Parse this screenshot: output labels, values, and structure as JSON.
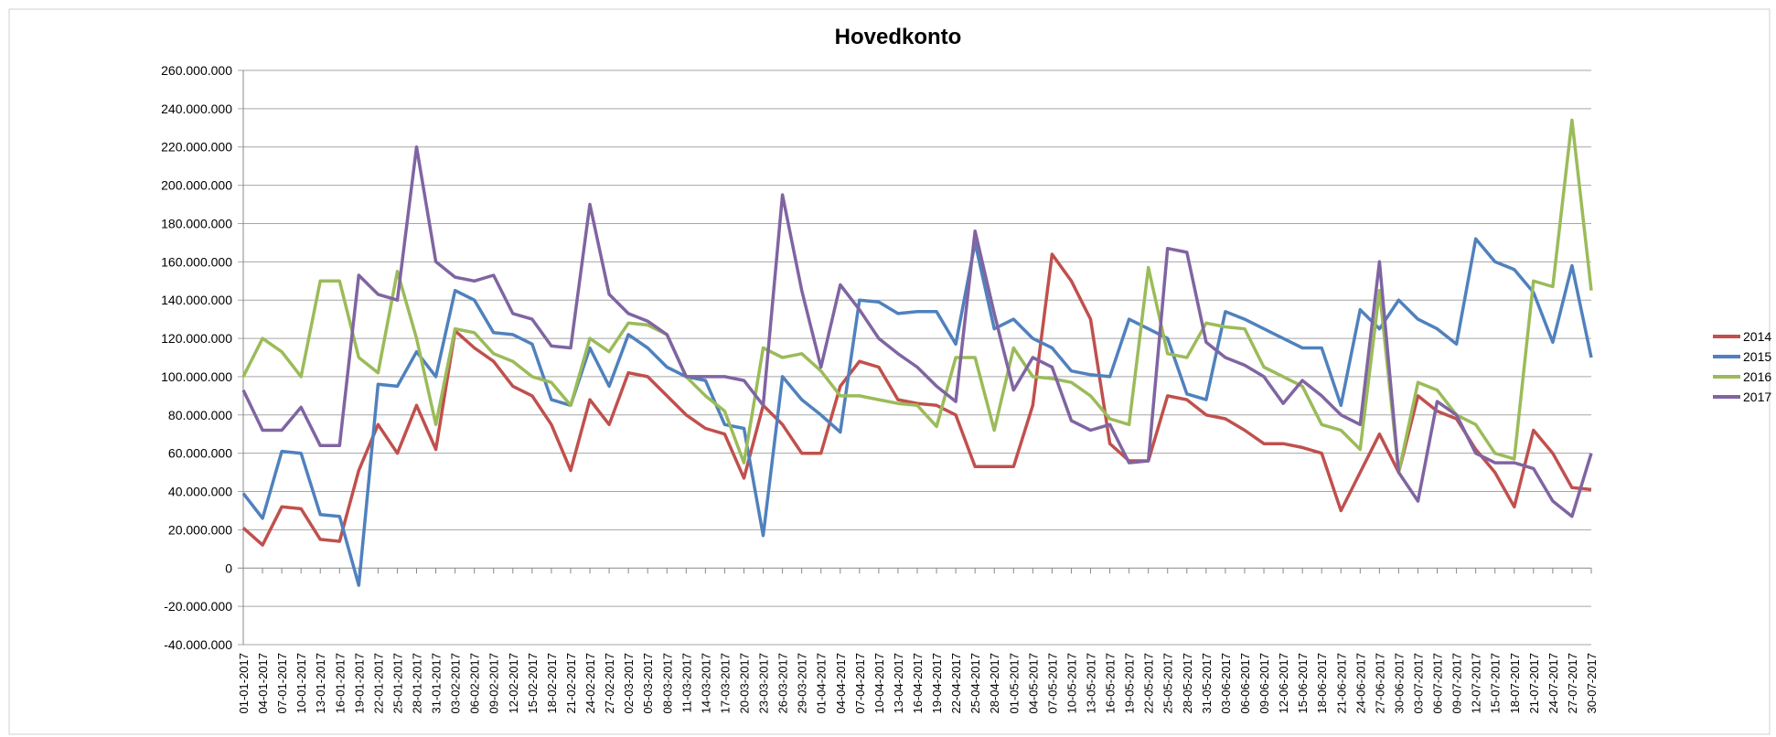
{
  "chart_data": {
    "type": "line",
    "title": "Hovedkonto",
    "categories": [
      "01-01-2017",
      "04-01-2017",
      "07-01-2017",
      "10-01-2017",
      "13-01-2017",
      "16-01-2017",
      "19-01-2017",
      "22-01-2017",
      "25-01-2017",
      "28-01-2017",
      "31-01-2017",
      "03-02-2017",
      "06-02-2017",
      "09-02-2017",
      "12-02-2017",
      "15-02-2017",
      "18-02-2017",
      "21-02-2017",
      "24-02-2017",
      "27-02-2017",
      "02-03-2017",
      "05-03-2017",
      "08-03-2017",
      "11-03-2017",
      "14-03-2017",
      "17-03-2017",
      "20-03-2017",
      "23-03-2017",
      "26-03-2017",
      "29-03-2017",
      "01-04-2017",
      "04-04-2017",
      "07-04-2017",
      "10-04-2017",
      "13-04-2017",
      "16-04-2017",
      "19-04-2017",
      "22-04-2017",
      "25-04-2017",
      "28-04-2017",
      "01-05-2017",
      "04-05-2017",
      "07-05-2017",
      "10-05-2017",
      "13-05-2017",
      "16-05-2017",
      "19-05-2017",
      "22-05-2017",
      "25-05-2017",
      "28-05-2017",
      "31-05-2017",
      "03-06-2017",
      "06-06-2017",
      "09-06-2017",
      "12-06-2017",
      "15-06-2017",
      "18-06-2017",
      "21-06-2017",
      "24-06-2017",
      "27-06-2017",
      "30-06-2017",
      "03-07-2017",
      "06-07-2017",
      "09-07-2017",
      "12-07-2017",
      "15-07-2017",
      "18-07-2017",
      "21-07-2017",
      "24-07-2017",
      "27-07-2017",
      "30-07-2017"
    ],
    "series": [
      {
        "name": "2014",
        "color": "#c0504d",
        "values": [
          21000000,
          12000000,
          32000000,
          31000000,
          15000000,
          14000000,
          51000000,
          75000000,
          60000000,
          85000000,
          62000000,
          124000000,
          115000000,
          108000000,
          95000000,
          90000000,
          75000000,
          51000000,
          88000000,
          75000000,
          102000000,
          100000000,
          90000000,
          80000000,
          73000000,
          70000000,
          47000000,
          85000000,
          75000000,
          60000000,
          60000000,
          95000000,
          108000000,
          105000000,
          88000000,
          86000000,
          85000000,
          80000000,
          53000000,
          53000000,
          53000000,
          85000000,
          164000000,
          150000000,
          130000000,
          65000000,
          56000000,
          56000000,
          90000000,
          88000000,
          80000000,
          78000000,
          72000000,
          65000000,
          65000000,
          63000000,
          60000000,
          30000000,
          50000000,
          70000000,
          50000000,
          90000000,
          82000000,
          78000000,
          62000000,
          50000000,
          32000000,
          72000000,
          60000000,
          42000000,
          41000000
        ]
      },
      {
        "name": "2015",
        "color": "#4f81bd",
        "values": [
          39000000,
          26000000,
          61000000,
          60000000,
          28000000,
          27000000,
          -9000000,
          96000000,
          95000000,
          113000000,
          100000000,
          145000000,
          140000000,
          123000000,
          122000000,
          117000000,
          88000000,
          85000000,
          115000000,
          95000000,
          122000000,
          115000000,
          105000000,
          100000000,
          98000000,
          75000000,
          73000000,
          17000000,
          100000000,
          88000000,
          80000000,
          71000000,
          140000000,
          139000000,
          133000000,
          134000000,
          134000000,
          117000000,
          170000000,
          125000000,
          130000000,
          120000000,
          115000000,
          103000000,
          101000000,
          100000000,
          130000000,
          125000000,
          120000000,
          91000000,
          88000000,
          134000000,
          130000000,
          125000000,
          120000000,
          115000000,
          115000000,
          85000000,
          135000000,
          125000000,
          140000000,
          130000000,
          125000000,
          117000000,
          172000000,
          160000000,
          156000000,
          144000000,
          118000000,
          158000000,
          110000000
        ]
      },
      {
        "name": "2016",
        "color": "#9bbb59",
        "values": [
          100000000,
          120000000,
          113000000,
          100000000,
          150000000,
          150000000,
          110000000,
          102000000,
          155000000,
          120000000,
          75000000,
          125000000,
          123000000,
          112000000,
          108000000,
          100000000,
          97000000,
          85000000,
          120000000,
          113000000,
          128000000,
          127000000,
          122000000,
          100000000,
          90000000,
          82000000,
          55000000,
          115000000,
          110000000,
          112000000,
          103000000,
          90000000,
          90000000,
          88000000,
          86000000,
          85000000,
          74000000,
          110000000,
          110000000,
          72000000,
          115000000,
          100000000,
          99000000,
          97000000,
          90000000,
          78000000,
          75000000,
          157000000,
          112000000,
          110000000,
          128000000,
          126000000,
          125000000,
          105000000,
          100000000,
          95000000,
          75000000,
          72000000,
          62000000,
          145000000,
          50000000,
          97000000,
          93000000,
          80000000,
          75000000,
          60000000,
          57000000,
          150000000,
          147000000,
          234000000,
          145000000
        ]
      },
      {
        "name": "2017",
        "color": "#8064a2",
        "values": [
          93000000,
          72000000,
          72000000,
          84000000,
          64000000,
          64000000,
          153000000,
          143000000,
          140000000,
          220000000,
          160000000,
          152000000,
          150000000,
          153000000,
          133000000,
          130000000,
          116000000,
          115000000,
          190000000,
          143000000,
          133000000,
          129000000,
          122000000,
          100000000,
          100000000,
          100000000,
          98000000,
          85000000,
          195000000,
          145000000,
          105000000,
          148000000,
          135000000,
          120000000,
          112000000,
          105000000,
          95000000,
          87000000,
          176000000,
          133000000,
          93000000,
          110000000,
          105000000,
          77000000,
          72000000,
          75000000,
          55000000,
          56000000,
          167000000,
          165000000,
          118000000,
          110000000,
          106000000,
          100000000,
          86000000,
          98000000,
          90000000,
          80000000,
          75000000,
          160000000,
          50000000,
          35000000,
          87000000,
          80000000,
          60000000,
          55000000,
          55000000,
          52000000,
          35000000,
          27000000,
          60000000
        ]
      }
    ],
    "ylim": [
      -40000000,
      260000000
    ],
    "yticks": [
      {
        "value": -40000000,
        "label": "-40.000.000"
      },
      {
        "value": -20000000,
        "label": "-20.000.000"
      },
      0,
      {
        "value": 20000000,
        "label": "20.000.000"
      },
      {
        "value": 40000000,
        "label": "40.000.000"
      },
      {
        "value": 60000000,
        "label": "60.000.000"
      },
      {
        "value": 80000000,
        "label": "80.000.000"
      },
      {
        "value": 100000000,
        "label": "100.000.000"
      },
      {
        "value": 120000000,
        "label": "120.000.000"
      },
      {
        "value": 140000000,
        "label": "140.000.000"
      },
      {
        "value": 160000000,
        "label": "160.000.000"
      },
      {
        "value": 180000000,
        "label": "180.000.000"
      },
      {
        "value": 200000000,
        "label": "200.000.000"
      },
      {
        "value": 220000000,
        "label": "220.000.000"
      },
      {
        "value": 240000000,
        "label": "240.000.000"
      },
      {
        "value": 260000000,
        "label": "260.000.000"
      }
    ],
    "grid": true,
    "legend": "right"
  }
}
